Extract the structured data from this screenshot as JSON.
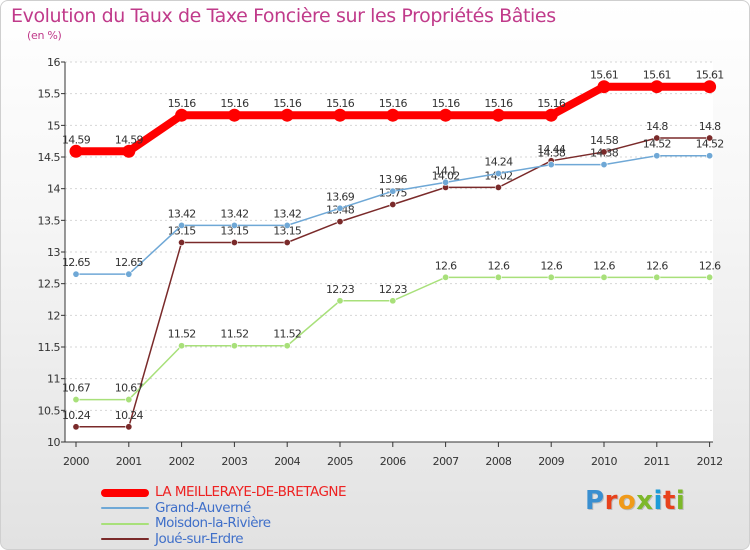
{
  "title": "Evolution du Taux de Taxe Foncière sur les Propriétés Bâties",
  "subtitle": "(en %)",
  "logo": {
    "text": "Proxiti",
    "colors": [
      "#3a8fd0",
      "#e8421c",
      "#f09a1a",
      "#7db82a",
      "#1d9bd8",
      "#e8421c",
      "#7db82a"
    ]
  },
  "chart_data": {
    "type": "line",
    "title": "Evolution du Taux de Taxe Foncière sur les Propriétés Bâties",
    "ylabel": "(en %)",
    "xlabel": "",
    "ylim": [
      10,
      16
    ],
    "categories": [
      "2000",
      "2001",
      "2002",
      "2003",
      "2004",
      "2005",
      "2006",
      "2007",
      "2008",
      "2009",
      "2010",
      "2011",
      "2012"
    ],
    "y_ticks": [
      "10",
      "10.5",
      "11",
      "11.5",
      "12",
      "12.5",
      "13",
      "13.5",
      "14",
      "14.5",
      "15",
      "15.5",
      "16"
    ],
    "grid": "horizontal",
    "series": [
      {
        "name": "LA MEILLERAYE-DE-BRETAGNE",
        "values": [
          14.59,
          14.59,
          15.16,
          15.16,
          15.16,
          15.16,
          15.16,
          15.16,
          15.16,
          15.16,
          15.61,
          15.61,
          15.61
        ],
        "labels": [
          "14.59",
          "14.59",
          "15.16",
          "15.16",
          "15.16",
          "15.16",
          "15.16",
          "15.16",
          "15.16",
          "15.16",
          "15.61",
          "15.61",
          "15.61"
        ],
        "color": "#ff0000",
        "legend_color": "#ee2222"
      },
      {
        "name": "Grand-Auverné",
        "values": [
          12.65,
          12.65,
          13.42,
          13.42,
          13.42,
          13.69,
          13.96,
          14.1,
          14.24,
          14.38,
          14.38,
          14.52,
          14.52
        ],
        "labels": [
          "12.65",
          "12.65",
          "13.42",
          "13.42",
          "13.42",
          "13.69",
          "13.96",
          "14.1",
          "14.24",
          "14.38",
          "14.38",
          "14.52",
          "14.52"
        ],
        "color": "#6fa8d6",
        "legend_color": "#3f6fc9"
      },
      {
        "name": "Moisdon-la-Rivière",
        "values": [
          10.67,
          10.67,
          11.52,
          11.52,
          11.52,
          12.23,
          12.23,
          12.6,
          12.6,
          12.6,
          12.6,
          12.6,
          12.6
        ],
        "labels": [
          "10.67",
          "10.67",
          "11.52",
          "11.52",
          "11.52",
          "12.23",
          "12.23",
          "12.6",
          "12.6",
          "12.6",
          "12.6",
          "12.6",
          "12.6"
        ],
        "color": "#a8e07a",
        "legend_color": "#3f6fc9"
      },
      {
        "name": "Joué-sur-Erdre",
        "values": [
          10.24,
          10.24,
          13.15,
          13.15,
          13.15,
          13.48,
          13.75,
          14.02,
          14.02,
          14.44,
          14.58,
          14.8,
          14.8
        ],
        "labels": [
          "10.24",
          "10.24",
          "13.15",
          "13.15",
          "13.15",
          "13.48",
          "13.75",
          "14.02",
          "14.02",
          "14.44",
          "14.58",
          "14.8",
          "14.8"
        ],
        "color": "#7a2a2a",
        "legend_color": "#3f6fc9"
      }
    ]
  }
}
